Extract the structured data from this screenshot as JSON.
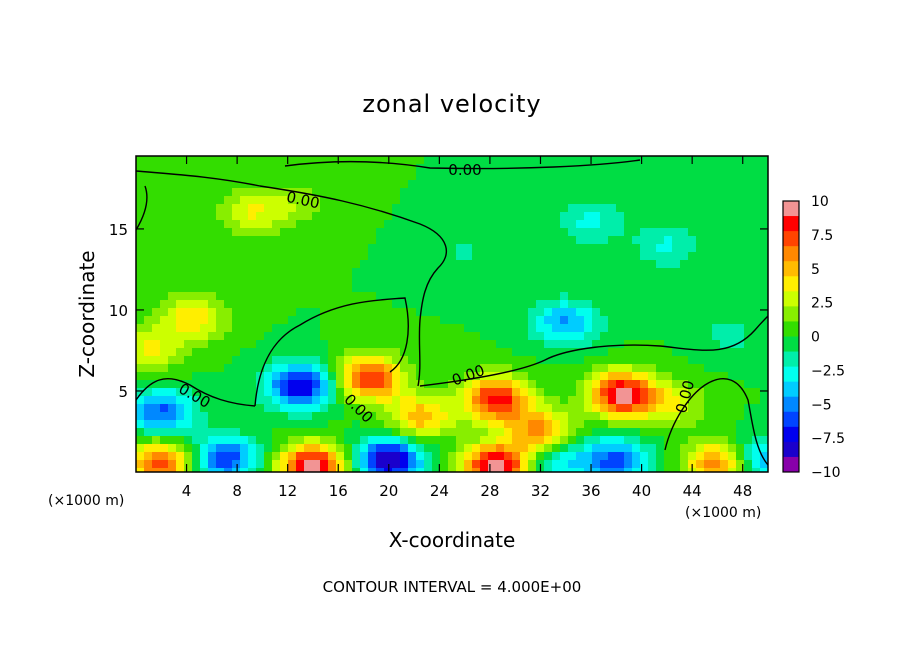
{
  "chart_data": {
    "type": "heatmap",
    "title": "zonal velocity",
    "xlabel": "X-coordinate",
    "ylabel": "Z-coordinate",
    "x_unit": "(×1000 m)",
    "xlim": [
      0,
      50
    ],
    "ylim": [
      0,
      19.5
    ],
    "x_ticks": [
      4,
      8,
      12,
      16,
      20,
      24,
      28,
      32,
      36,
      40,
      44,
      48
    ],
    "y_ticks": [
      5,
      10,
      15
    ],
    "grid": false,
    "contour_label": "0.00",
    "footer": "CONTOUR INTERVAL = 4.000E+00",
    "colorbar": {
      "min": -10,
      "max": 10,
      "ticks": [
        "10",
        "7.5",
        "5",
        "2.5",
        "0",
        "−2.5",
        "−5",
        "−7.5",
        "−10"
      ],
      "colors": [
        "#f29494",
        "#ff0000",
        "#ff4400",
        "#ff8800",
        "#ffbb00",
        "#ffee00",
        "#ccff00",
        "#88ee00",
        "#33dd00",
        "#00dd44",
        "#00eeaa",
        "#00ffee",
        "#00ccff",
        "#0088ff",
        "#0044ff",
        "#0000ee",
        "#1a00cc",
        "#8800aa"
      ]
    },
    "features": [
      {
        "x": 0,
        "z": 19.5,
        "value": 0.6
      },
      {
        "x": 50,
        "z": 19.5,
        "value": -0.6
      },
      {
        "x": 9,
        "z": 16.0,
        "value": 3.2
      },
      {
        "x": 12.5,
        "z": 16.5,
        "value": 1.8
      },
      {
        "x": 36,
        "z": 15.5,
        "value": -2.6
      },
      {
        "x": 42,
        "z": 14.0,
        "value": -2.4
      },
      {
        "x": 26,
        "z": 13.5,
        "value": -1.2
      },
      {
        "x": 4.5,
        "z": 9.5,
        "value": 4.4
      },
      {
        "x": 1,
        "z": 7.5,
        "value": 3.5
      },
      {
        "x": 34,
        "z": 9.2,
        "value": -4.6
      },
      {
        "x": 47,
        "z": 8.5,
        "value": -1.5
      },
      {
        "x": 13,
        "z": 5.3,
        "value": -7.8
      },
      {
        "x": 2,
        "z": 3.7,
        "value": -5.8
      },
      {
        "x": 18.5,
        "z": 5.8,
        "value": 7.8
      },
      {
        "x": 22.5,
        "z": 3.4,
        "value": 5.2
      },
      {
        "x": 28.5,
        "z": 4.5,
        "value": 8.5
      },
      {
        "x": 32,
        "z": 2.5,
        "value": 6.0
      },
      {
        "x": 38.5,
        "z": 4.8,
        "value": 9.5
      },
      {
        "x": 42.5,
        "z": 4.2,
        "value": 3.0
      },
      {
        "x": 7,
        "z": 0.8,
        "value": -6.5
      },
      {
        "x": 2,
        "z": 0.5,
        "value": 7.5
      },
      {
        "x": 14,
        "z": 0.3,
        "value": 10.0
      },
      {
        "x": 20,
        "z": 0.7,
        "value": -9.0
      },
      {
        "x": 28.5,
        "z": 0.3,
        "value": 10.0
      },
      {
        "x": 33.5,
        "z": 0.6,
        "value": -3.5
      },
      {
        "x": 38,
        "z": 0.7,
        "value": -6.0
      },
      {
        "x": 46,
        "z": 0.5,
        "value": 6.5
      },
      {
        "x": 49.5,
        "z": 0.8,
        "value": -4.5
      }
    ]
  }
}
